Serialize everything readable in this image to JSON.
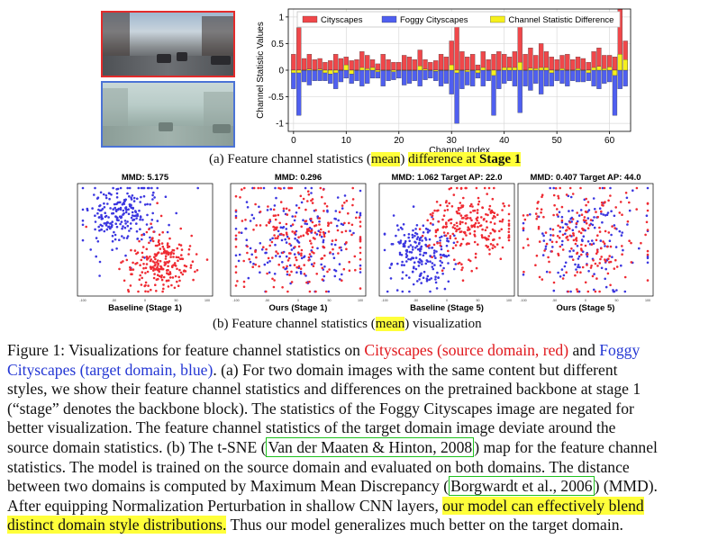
{
  "figure": {
    "panel_a_caption": {
      "prefix": "(a) Feature channel statistics (",
      "mean": "mean",
      "suffix": "difference at ",
      "stage": "Stage 1"
    },
    "panel_b_caption": {
      "prefix": "(b) Feature channel statistics (",
      "mean": "mean",
      "suffix": ") visualization"
    },
    "tsne_panels": [
      {
        "title": "MMD: 5.175",
        "label": "Baseline (Stage 1)"
      },
      {
        "title": "MMD: 0.296",
        "label": "Ours (Stage 1)"
      },
      {
        "title": "MMD: 1.062  Target AP: 22.0",
        "label": "Baseline (Stage 5)"
      },
      {
        "title": "MMD: 0.407  Target AP: 44.0",
        "label": "Ours (Stage 5)"
      }
    ]
  },
  "chart_data": {
    "type": "bar",
    "xlabel": "Channel Index",
    "ylabel": "Channel Statistic Values",
    "xlim": [
      -1,
      64
    ],
    "ylim": [
      -1.15,
      1.15
    ],
    "xticks": [
      0,
      10,
      20,
      30,
      40,
      50,
      60
    ],
    "yticks": [
      -1,
      -0.5,
      0,
      0.5,
      1
    ],
    "legend": "top",
    "colors": {
      "Cityscapes": "#f0474a",
      "Foggy Cityscapes": "#4f5ff0",
      "Channel Statistic Difference": "#f6f01c"
    },
    "series": [
      {
        "name": "Cityscapes",
        "values": [
          0.3,
          0.8,
          0.22,
          0.3,
          0.2,
          0.22,
          0.15,
          0.18,
          0.3,
          0.22,
          0.25,
          0.18,
          0.2,
          0.35,
          0.28,
          0.2,
          0.12,
          0.3,
          0.2,
          0.15,
          0.15,
          0.28,
          0.25,
          0.2,
          0.38,
          0.2,
          0.15,
          0.18,
          0.3,
          0.25,
          0.55,
          0.95,
          0.35,
          0.25,
          0.3,
          0.1,
          0.35,
          0.2,
          0.3,
          0.35,
          0.3,
          0.25,
          0.35,
          0.95,
          0.3,
          0.42,
          0.28,
          0.5,
          0.35,
          0.25,
          0.2,
          0.28,
          0.3,
          0.2,
          0.25,
          0.22,
          0.15,
          0.35,
          0.42,
          0.28,
          0.28,
          0.25,
          1.15,
          0.55
        ]
      },
      {
        "name": "Foggy Cityscapes",
        "values": [
          -0.35,
          -0.85,
          -0.22,
          -0.28,
          -0.2,
          -0.2,
          -0.2,
          -0.25,
          -0.35,
          -0.22,
          -0.15,
          -0.25,
          -0.2,
          -0.3,
          -0.25,
          -0.15,
          -0.15,
          -0.3,
          -0.2,
          -0.18,
          -0.15,
          -0.28,
          -0.25,
          -0.2,
          -0.3,
          -0.18,
          -0.15,
          -0.2,
          -0.3,
          -0.25,
          -0.45,
          -1.0,
          -0.35,
          -0.28,
          -0.3,
          -0.15,
          -0.3,
          -0.2,
          -0.85,
          -0.35,
          -0.25,
          -0.2,
          -0.3,
          -0.8,
          -0.3,
          -0.38,
          -0.25,
          -0.45,
          -0.3,
          -0.3,
          -0.2,
          -0.25,
          -0.3,
          -0.2,
          -0.22,
          -0.22,
          -0.2,
          -0.3,
          -0.35,
          -0.25,
          -0.22,
          -0.85,
          -0.35,
          -0.3
        ]
      },
      {
        "name": "Channel Statistic Difference",
        "values": [
          -0.05,
          -0.05,
          0.0,
          0.02,
          0.0,
          0.02,
          -0.05,
          -0.07,
          -0.05,
          0.0,
          0.1,
          -0.07,
          0.0,
          0.05,
          0.03,
          0.05,
          -0.03,
          0.0,
          0.0,
          -0.03,
          0.0,
          0.0,
          0.0,
          0.0,
          0.08,
          0.02,
          0.0,
          -0.02,
          0.0,
          0.0,
          0.1,
          -0.05,
          0.0,
          -0.03,
          0.0,
          -0.05,
          0.05,
          0.0,
          -0.1,
          0.0,
          0.05,
          0.05,
          0.05,
          0.15,
          0.0,
          0.04,
          0.03,
          0.05,
          0.05,
          -0.05,
          0.0,
          0.03,
          0.0,
          0.0,
          0.03,
          0.0,
          -0.05,
          0.05,
          0.07,
          0.03,
          0.06,
          -0.1,
          0.3,
          0.2
        ]
      }
    ]
  },
  "caption": {
    "label": "Figure 1:",
    "t1": " Visualizations for feature channel statistics on ",
    "src": "Cityscapes (source domain, red)",
    "and": " and ",
    "tgt1": "Foggy",
    "tgt2": "Cityscapes (target domain, blue)",
    "t2": ". (a) For two domain images with the same content but different",
    "l3": "styles, we show their feature channel statistics and differences on the pretrained backbone at stage 1",
    "l4": "(“stage” denotes the backbone block). The statistics of the Foggy Cityscapes image are negated for",
    "l5": "better visualization. The feature channel statistics of the target domain image deviate around the",
    "l6a": "source domain statistics. (b) The t-SNE (",
    "cite1": "Van der Maaten & Hinton, 2008",
    "l6b": ") map for the feature channel",
    "l7": "statistics. The model is trained on the source domain and evaluated on both domains. The distance",
    "l8a": "between two domains is computed by Maximum Mean Discrepancy (",
    "cite2": "Borgwardt et al., 2006",
    "l8b": ") (MMD).",
    "l9a": "After equipping Normalization Perturbation in shallow CNN layers, ",
    "hl1": "our model can effectively blend",
    "hl2": "distinct domain style distributions.",
    "l10b": " Thus our model generalizes much better on the target domain."
  }
}
